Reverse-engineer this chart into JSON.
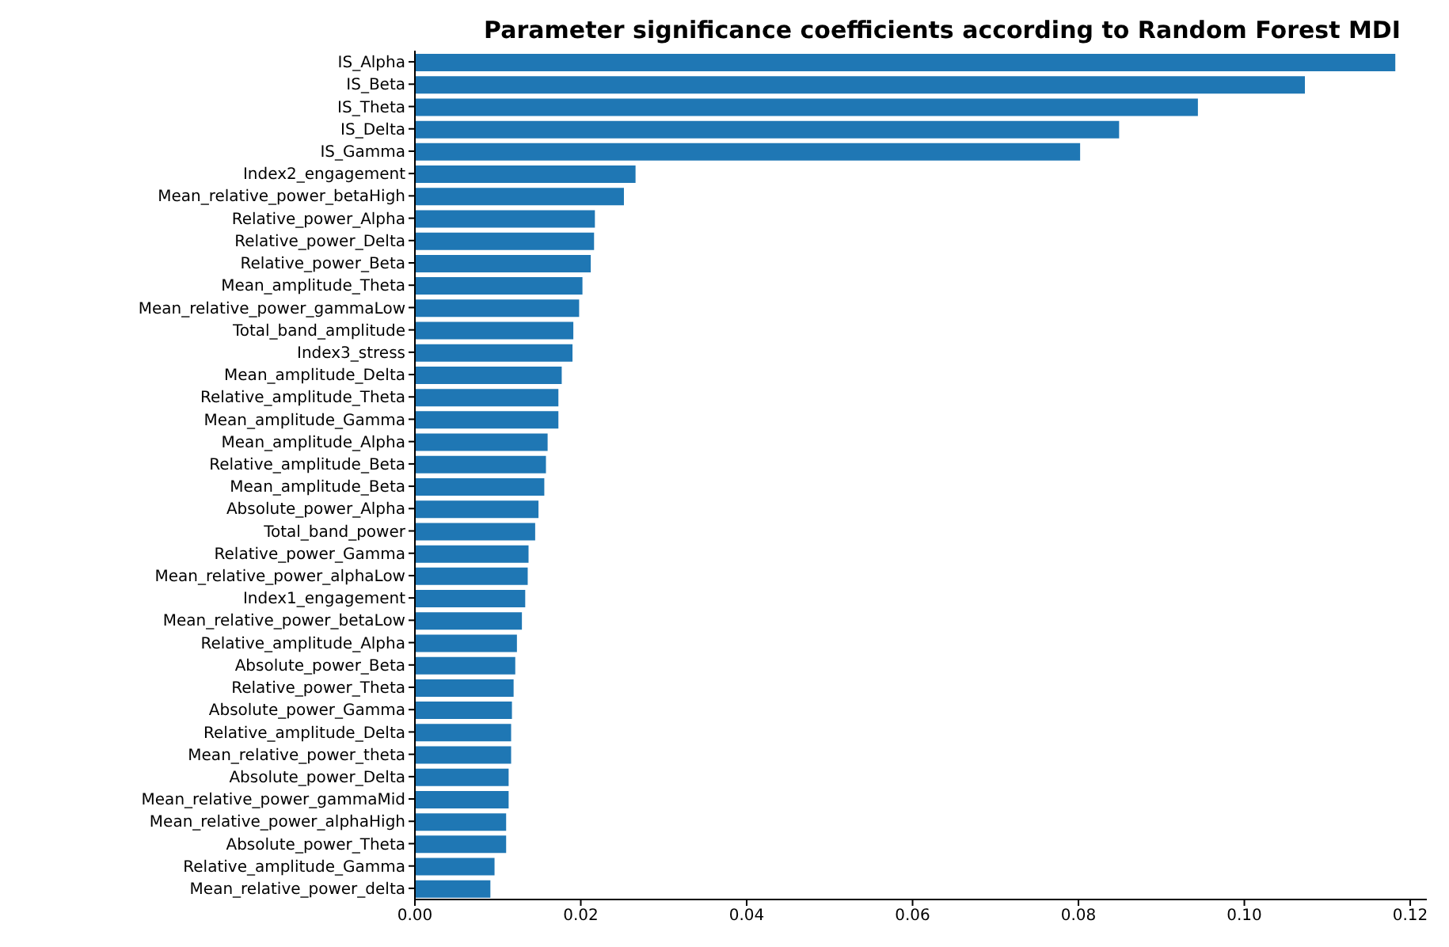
{
  "chart_data": {
    "type": "bar",
    "orientation": "horizontal",
    "title": "Parameter significance coefficients according to Random Forest MDI",
    "categories": [
      "IS_Alpha",
      "IS_Beta",
      "IS_Theta",
      "IS_Delta",
      "IS_Gamma",
      "Index2_engagement",
      "Mean_relative_power_betaHigh",
      "Relative_power_Alpha",
      "Relative_power_Delta",
      "Relative_power_Beta",
      "Mean_amplitude_Theta",
      "Mean_relative_power_gammaLow",
      "Total_band_amplitude",
      "Index3_stress",
      "Mean_amplitude_Delta",
      "Relative_amplitude_Theta",
      "Mean_amplitude_Gamma",
      "Mean_amplitude_Alpha",
      "Relative_amplitude_Beta",
      "Mean_amplitude_Beta",
      "Absolute_power_Alpha",
      "Total_band_power",
      "Relative_power_Gamma",
      "Mean_relative_power_alphaLow",
      "Index1_engagement",
      "Mean_relative_power_betaLow",
      "Relative_amplitude_Alpha",
      "Absolute_power_Beta",
      "Relative_power_Theta",
      "Absolute_power_Gamma",
      "Relative_amplitude_Delta",
      "Mean_relative_power_theta",
      "Absolute_power_Delta",
      "Mean_relative_power_gammaMid",
      "Mean_relative_power_alphaHigh",
      "Absolute_power_Theta",
      "Relative_amplitude_Gamma",
      "Mean_relative_power_delta"
    ],
    "values": [
      0.1182,
      0.1073,
      0.0944,
      0.0849,
      0.0802,
      0.0266,
      0.0252,
      0.0217,
      0.0216,
      0.0212,
      0.0202,
      0.0198,
      0.0191,
      0.019,
      0.0177,
      0.0173,
      0.0173,
      0.016,
      0.0158,
      0.0156,
      0.0149,
      0.0145,
      0.0137,
      0.0136,
      0.0133,
      0.0129,
      0.0123,
      0.0121,
      0.0119,
      0.0117,
      0.0116,
      0.0116,
      0.0113,
      0.0113,
      0.011,
      0.011,
      0.0096,
      0.0091
    ],
    "color": "#1f77b4",
    "xlim": [
      0,
      0.122
    ],
    "xticks": [
      {
        "value": 0,
        "label": "0.00"
      },
      {
        "value": 0.02,
        "label": "0.02"
      },
      {
        "value": 0.04,
        "label": "0.04"
      },
      {
        "value": 0.06,
        "label": "0.06"
      },
      {
        "value": 0.08,
        "label": "0.08"
      },
      {
        "value": 0.1,
        "label": "0.10"
      },
      {
        "value": 0.12,
        "label": "0.12"
      }
    ],
    "grid": false,
    "legend": false
  }
}
